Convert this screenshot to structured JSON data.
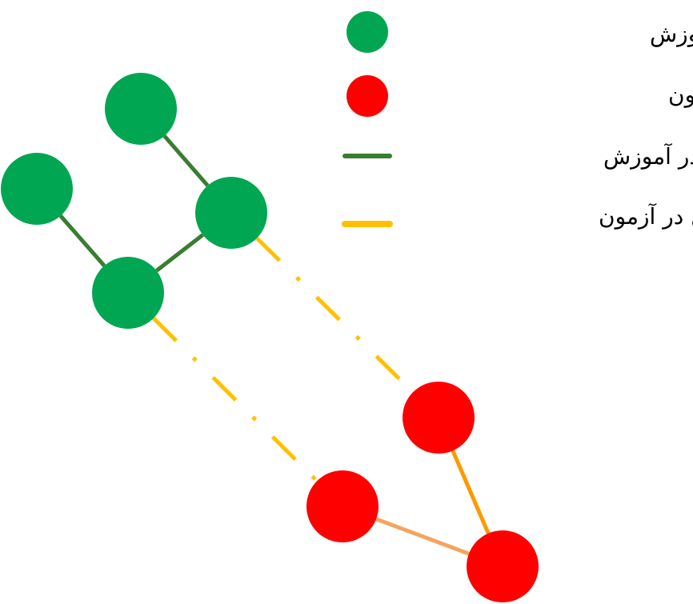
{
  "colors": {
    "train_node": "#00A651",
    "test_node": "#FF0000",
    "train_edge": "#3A7D32",
    "test_edge": "#FFC000",
    "test_edge_light": "#F4A460",
    "test_edge_orange": "#FF9900"
  },
  "legend": [
    {
      "kind": "node",
      "color_key": "train_node",
      "label": "داروی موجود در آموزش"
    },
    {
      "kind": "node",
      "color_key": "test_node",
      "label": "داروی موجود در آزمون"
    },
    {
      "kind": "edge",
      "color_key": "train_edge",
      "label": "تداخل در آموزش"
    },
    {
      "kind": "edge",
      "color_key": "test_edge",
      "label": "تداخل در آزمون"
    }
  ],
  "graph": {
    "nodes": [
      {
        "id": "g1",
        "group": "train"
      },
      {
        "id": "g2",
        "group": "train"
      },
      {
        "id": "g3",
        "group": "train"
      },
      {
        "id": "g4",
        "group": "train"
      },
      {
        "id": "r1",
        "group": "test"
      },
      {
        "id": "r2",
        "group": "test"
      },
      {
        "id": "r3",
        "group": "test"
      }
    ],
    "edges": [
      {
        "from": "g1",
        "to": "g3",
        "type": "train"
      },
      {
        "from": "g2",
        "to": "g4",
        "type": "train"
      },
      {
        "from": "g3",
        "to": "g4",
        "type": "train"
      },
      {
        "from": "g3",
        "to": "r1",
        "type": "test-dashed"
      },
      {
        "from": "g4",
        "to": "r2",
        "type": "test-dashed"
      },
      {
        "from": "r1",
        "to": "r3",
        "type": "test-light"
      },
      {
        "from": "r2",
        "to": "r3",
        "type": "test-orange"
      }
    ]
  }
}
